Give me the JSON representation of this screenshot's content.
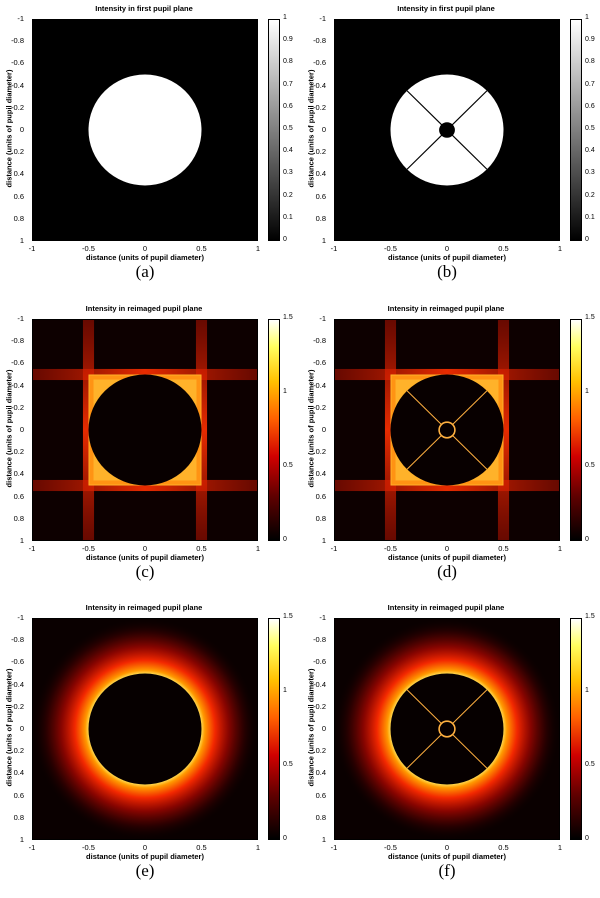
{
  "chart_data": [
    {
      "type": "heatmap",
      "panel": "a",
      "title": "Intensity in first pupil plane",
      "xlabel": "distance (units of pupil diameter)",
      "ylabel": "distance (units of pupil diameter)",
      "caption": "(a)",
      "xlim": [
        -1,
        1
      ],
      "ylim": [
        -1,
        1
      ],
      "x_ticks": [
        "-1",
        "-0.5",
        "0",
        "0.5",
        "1"
      ],
      "y_ticks": [
        "-1",
        "-0.8",
        "-0.6",
        "-0.4",
        "-0.2",
        "0",
        "0.2",
        "0.4",
        "0.6",
        "0.8",
        "1"
      ],
      "colormap": "gray",
      "clim": [
        0,
        1
      ],
      "colorbar_ticks": [
        "1",
        "0.9",
        "0.8",
        "0.7",
        "0.6",
        "0.5",
        "0.4",
        "0.3",
        "0.2",
        "0.1",
        "0"
      ],
      "pupil": {
        "radius": 0.5,
        "inside_intensity": 1,
        "outside_intensity": 0,
        "central_obstruction_radius": 0,
        "spiders": false
      }
    },
    {
      "type": "heatmap",
      "panel": "b",
      "title": "Intensity in first pupil plane",
      "xlabel": "distance (units of pupil diameter)",
      "ylabel": "distance (units of pupil diameter)",
      "caption": "(b)",
      "xlim": [
        -1,
        1
      ],
      "ylim": [
        -1,
        1
      ],
      "x_ticks": [
        "-1",
        "-0.5",
        "0",
        "0.5",
        "1"
      ],
      "y_ticks": [
        "-1",
        "-0.8",
        "-0.6",
        "-0.4",
        "-0.2",
        "0",
        "0.2",
        "0.4",
        "0.6",
        "0.8",
        "1"
      ],
      "colormap": "gray",
      "clim": [
        0,
        1
      ],
      "colorbar_ticks": [
        "1",
        "0.9",
        "0.8",
        "0.7",
        "0.6",
        "0.5",
        "0.4",
        "0.3",
        "0.2",
        "0.1",
        "0"
      ],
      "pupil": {
        "radius": 0.5,
        "inside_intensity": 1,
        "outside_intensity": 0,
        "central_obstruction_radius": 0.07,
        "spiders": true,
        "spider_angles_deg": [
          45,
          135
        ]
      }
    },
    {
      "type": "heatmap",
      "panel": "c",
      "title": "Intensity in reimaged pupil plane",
      "xlabel": "distance (units of pupil diameter)",
      "ylabel": "distance (units of pupil diameter)",
      "caption": "(c)",
      "xlim": [
        -1,
        1
      ],
      "ylim": [
        -1,
        1
      ],
      "x_ticks": [
        "-1",
        "-0.5",
        "0",
        "0.5",
        "1"
      ],
      "y_ticks": [
        "-1",
        "-0.8",
        "-0.6",
        "-0.4",
        "-0.2",
        "0",
        "0.2",
        "0.4",
        "0.6",
        "0.8",
        "1"
      ],
      "colormap": "hot",
      "clim": [
        0,
        1.5
      ],
      "colorbar_ticks": [
        "1.5",
        "1",
        "0.5",
        "0"
      ],
      "pattern": "square-mask",
      "pupil": {
        "radius": 0.5,
        "central_obstruction_radius": 0,
        "spiders": false
      }
    },
    {
      "type": "heatmap",
      "panel": "d",
      "title": "Intensity in reimaged pupil plane",
      "xlabel": "distance (units of pupil diameter)",
      "ylabel": "distance (units of pupil diameter)",
      "caption": "(d)",
      "xlim": [
        -1,
        1
      ],
      "ylim": [
        -1,
        1
      ],
      "x_ticks": [
        "-1",
        "-0.5",
        "0",
        "0.5",
        "1"
      ],
      "y_ticks": [
        "-1",
        "-0.8",
        "-0.6",
        "-0.4",
        "-0.2",
        "0",
        "0.2",
        "0.4",
        "0.6",
        "0.8",
        "1"
      ],
      "colormap": "hot",
      "clim": [
        0,
        1.5
      ],
      "colorbar_ticks": [
        "1.5",
        "1",
        "0.5",
        "0"
      ],
      "pattern": "square-mask",
      "pupil": {
        "radius": 0.5,
        "central_obstruction_radius": 0.07,
        "spiders": true,
        "spider_angles_deg": [
          45,
          135
        ]
      }
    },
    {
      "type": "heatmap",
      "panel": "e",
      "title": "Intensity in reimaged pupil plane",
      "xlabel": "distance (units of pupil diameter)",
      "ylabel": "distance (units of pupil diameter)",
      "caption": "(e)",
      "xlim": [
        -1,
        1
      ],
      "ylim": [
        -1,
        1
      ],
      "x_ticks": [
        "-1",
        "-0.5",
        "0",
        "0.5",
        "1"
      ],
      "y_ticks": [
        "-1",
        "-0.8",
        "-0.6",
        "-0.4",
        "-0.2",
        "0",
        "0.2",
        "0.4",
        "0.6",
        "0.8",
        "1"
      ],
      "colormap": "hot",
      "clim": [
        0,
        1.5
      ],
      "colorbar_ticks": [
        "1.5",
        "1",
        "0.5",
        "0"
      ],
      "pattern": "ring",
      "pupil": {
        "radius": 0.5,
        "central_obstruction_radius": 0,
        "spiders": false
      }
    },
    {
      "type": "heatmap",
      "panel": "f",
      "title": "Intensity in reimaged pupil plane",
      "xlabel": "distance (units of pupil diameter)",
      "ylabel": "distance (units of pupil diameter)",
      "caption": "(f)",
      "xlim": [
        -1,
        1
      ],
      "ylim": [
        -1,
        1
      ],
      "x_ticks": [
        "-1",
        "-0.5",
        "0",
        "0.5",
        "1"
      ],
      "y_ticks": [
        "-1",
        "-0.8",
        "-0.6",
        "-0.4",
        "-0.2",
        "0",
        "0.2",
        "0.4",
        "0.6",
        "0.8",
        "1"
      ],
      "colormap": "hot",
      "clim": [
        0,
        1.5
      ],
      "colorbar_ticks": [
        "1.5",
        "1",
        "0.5",
        "0"
      ],
      "pattern": "ring",
      "pupil": {
        "radius": 0.5,
        "central_obstruction_radius": 0.07,
        "spiders": true,
        "spider_angles_deg": [
          45,
          135
        ]
      }
    }
  ]
}
